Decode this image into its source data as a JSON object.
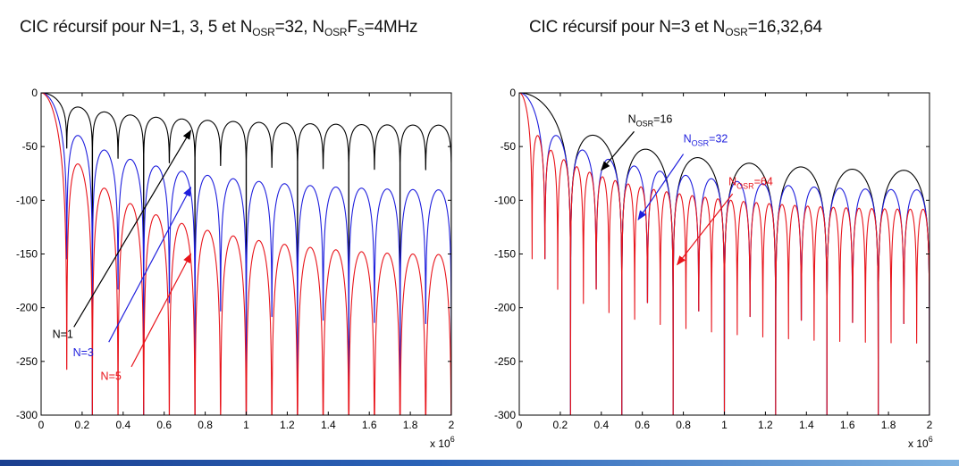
{
  "chart_data": [
    {
      "type": "line",
      "title": {
        "main": "CIC récursif pour N=1, 3, 5 et N",
        "sub1": "OSR",
        "mid1": "=32, N",
        "sub2": "OSR",
        "mid2": "F",
        "sub3": "S",
        "tail": "=4MHz"
      },
      "xlim": [
        0,
        2000000
      ],
      "ylim": [
        -300,
        0
      ],
      "x_ticks": [
        "0",
        "0.2",
        "0.4",
        "0.6",
        "0.8",
        "1",
        "1.2",
        "1.4",
        "1.6",
        "1.8",
        "2"
      ],
      "y_ticks": [
        "0",
        "-50",
        "-100",
        "-150",
        "-200",
        "-250",
        "-300"
      ],
      "x_multiplier": {
        "base": "x 10",
        "exp": "6"
      },
      "grid": false,
      "fs_hz": 4000000,
      "series": [
        {
          "name": "N=1",
          "color": "#000000",
          "order": 1,
          "nosr": 32
        },
        {
          "name": "N=3",
          "color": "#1f1fdd",
          "order": 3,
          "nosr": 32
        },
        {
          "name": "N=5",
          "color": "#e8141b",
          "order": 5,
          "nosr": 32
        }
      ],
      "annotations": [
        {
          "label": "N=1",
          "color": "#000000",
          "text_at": [
            0.055,
            -228
          ],
          "arrow_from": [
            0.16,
            -218
          ],
          "arrow_to": [
            0.73,
            -35
          ]
        },
        {
          "label": "N=3",
          "color": "#1f1fdd",
          "text_at": [
            0.155,
            -245
          ],
          "arrow_from": [
            0.33,
            -232
          ],
          "arrow_to": [
            0.73,
            -88
          ]
        },
        {
          "label": "N=5",
          "color": "#e8141b",
          "text_at": [
            0.29,
            -267
          ],
          "arrow_from": [
            0.44,
            -255
          ],
          "arrow_to": [
            0.73,
            -150
          ]
        }
      ]
    },
    {
      "type": "line",
      "title": {
        "main": "CIC récursif pour N=3 et N",
        "sub1": "OSR",
        "tail": "=16,32,64"
      },
      "xlim": [
        0,
        2000000
      ],
      "ylim": [
        -300,
        0
      ],
      "x_ticks": [
        "0",
        "0.2",
        "0.4",
        "0.6",
        "0.8",
        "1",
        "1.2",
        "1.4",
        "1.6",
        "1.8",
        "2"
      ],
      "y_ticks": [
        "0",
        "-50",
        "-100",
        "-150",
        "-200",
        "-250",
        "-300"
      ],
      "x_multiplier": {
        "base": "x 10",
        "exp": "6"
      },
      "grid": false,
      "fs_hz": 4000000,
      "series": [
        {
          "name": "N_OSR=16",
          "color": "#000000",
          "order": 3,
          "nosr": 16
        },
        {
          "name": "N_OSR=32",
          "color": "#1f1fdd",
          "order": 3,
          "nosr": 32
        },
        {
          "name": "N_OSR=64",
          "color": "#e8141b",
          "order": 3,
          "nosr": 64
        }
      ],
      "annotations": [
        {
          "label": "N",
          "sub": "OSR",
          "tail": "=16",
          "color": "#000000",
          "text_at": [
            0.53,
            -28
          ],
          "arrow_from": [
            0.56,
            -36
          ],
          "arrow_to": [
            0.4,
            -72
          ]
        },
        {
          "label": "N",
          "sub": "OSR",
          "tail": "=32",
          "color": "#1f1fdd",
          "text_at": [
            0.8,
            -46
          ],
          "arrow_from": [
            0.8,
            -57
          ],
          "arrow_to": [
            0.58,
            -118
          ]
        },
        {
          "label": "N",
          "sub": "OSR",
          "tail": "=64",
          "color": "#e8141b",
          "text_at": [
            1.02,
            -86
          ],
          "arrow_from": [
            1.04,
            -94
          ],
          "arrow_to": [
            0.77,
            -160
          ]
        }
      ]
    }
  ]
}
